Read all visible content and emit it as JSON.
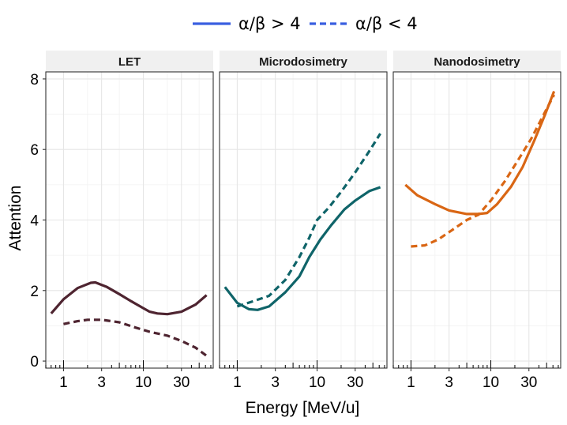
{
  "chart_data": {
    "type": "line",
    "xlabel": "Energy [MeV/u]",
    "ylabel": "Attention",
    "x_scale": "log",
    "xlim": [
      0.6,
      75
    ],
    "ylim": [
      -0.2,
      8.2
    ],
    "x_ticks": [
      1,
      3,
      10,
      30
    ],
    "x_tick_labels": [
      "1",
      "3",
      "10",
      "30"
    ],
    "y_ticks": [
      0,
      2,
      4,
      6,
      8
    ],
    "y_tick_labels": [
      "0",
      "2",
      "4",
      "6",
      "8"
    ],
    "grid": true,
    "legend": {
      "position": "top",
      "entries": [
        {
          "label": "α/β > 4",
          "linetype": "solid",
          "color": "#3a5fe0"
        },
        {
          "label": "α/β < 4",
          "linetype": "dashed",
          "color": "#3a5fe0"
        }
      ]
    },
    "panels": [
      {
        "title": "LET",
        "color": "#4e2430",
        "series": [
          {
            "name": "α/β > 4",
            "linetype": "solid",
            "points": [
              [
                0.7,
                1.35
              ],
              [
                1.0,
                1.75
              ],
              [
                1.5,
                2.07
              ],
              [
                2.2,
                2.22
              ],
              [
                2.5,
                2.23
              ],
              [
                3.5,
                2.1
              ],
              [
                5,
                1.9
              ],
              [
                7,
                1.7
              ],
              [
                10,
                1.5
              ],
              [
                12,
                1.4
              ],
              [
                15,
                1.35
              ],
              [
                20,
                1.33
              ],
              [
                30,
                1.4
              ],
              [
                45,
                1.6
              ],
              [
                62,
                1.87
              ]
            ]
          },
          {
            "name": "α/β < 4",
            "linetype": "dashed",
            "points": [
              [
                1.0,
                1.05
              ],
              [
                1.5,
                1.13
              ],
              [
                2.0,
                1.17
              ],
              [
                3.0,
                1.17
              ],
              [
                5,
                1.1
              ],
              [
                8,
                0.95
              ],
              [
                12,
                0.83
              ],
              [
                20,
                0.72
              ],
              [
                30,
                0.57
              ],
              [
                45,
                0.38
              ],
              [
                62,
                0.15
              ]
            ]
          }
        ]
      },
      {
        "title": "Microdosimetry",
        "color": "#0f6469",
        "series": [
          {
            "name": "α/β > 4",
            "linetype": "solid",
            "points": [
              [
                0.7,
                2.1
              ],
              [
                1.0,
                1.65
              ],
              [
                1.4,
                1.47
              ],
              [
                1.8,
                1.45
              ],
              [
                2.5,
                1.55
              ],
              [
                4,
                1.95
              ],
              [
                6,
                2.4
              ],
              [
                8,
                2.95
              ],
              [
                11,
                3.45
              ],
              [
                15,
                3.85
              ],
              [
                22,
                4.3
              ],
              [
                30,
                4.55
              ],
              [
                45,
                4.82
              ],
              [
                62,
                4.93
              ]
            ]
          },
          {
            "name": "α/β < 4",
            "linetype": "dashed",
            "points": [
              [
                1.0,
                1.55
              ],
              [
                1.5,
                1.68
              ],
              [
                2.5,
                1.85
              ],
              [
                4,
                2.3
              ],
              [
                6,
                2.95
              ],
              [
                8,
                3.5
              ],
              [
                10,
                4.0
              ],
              [
                14,
                4.35
              ],
              [
                20,
                4.8
              ],
              [
                30,
                5.35
              ],
              [
                45,
                5.95
              ],
              [
                62,
                6.45
              ]
            ]
          }
        ]
      },
      {
        "title": "Nanodosimetry",
        "color": "#d96614",
        "series": [
          {
            "name": "α/β > 4",
            "linetype": "solid",
            "points": [
              [
                0.85,
                5.0
              ],
              [
                1.2,
                4.7
              ],
              [
                2,
                4.45
              ],
              [
                3,
                4.27
              ],
              [
                5,
                4.17
              ],
              [
                7,
                4.17
              ],
              [
                9,
                4.2
              ],
              [
                12,
                4.45
              ],
              [
                18,
                4.95
              ],
              [
                25,
                5.5
              ],
              [
                35,
                6.25
              ],
              [
                48,
                7.0
              ],
              [
                62,
                7.65
              ]
            ]
          },
          {
            "name": "α/β < 4",
            "linetype": "dashed",
            "points": [
              [
                1.0,
                3.25
              ],
              [
                1.5,
                3.28
              ],
              [
                2.2,
                3.45
              ],
              [
                3.2,
                3.7
              ],
              [
                5,
                4.0
              ],
              [
                7,
                4.15
              ],
              [
                10,
                4.55
              ],
              [
                15,
                5.1
              ],
              [
                22,
                5.7
              ],
              [
                32,
                6.3
              ],
              [
                45,
                6.95
              ],
              [
                62,
                7.55
              ]
            ]
          }
        ]
      }
    ]
  }
}
